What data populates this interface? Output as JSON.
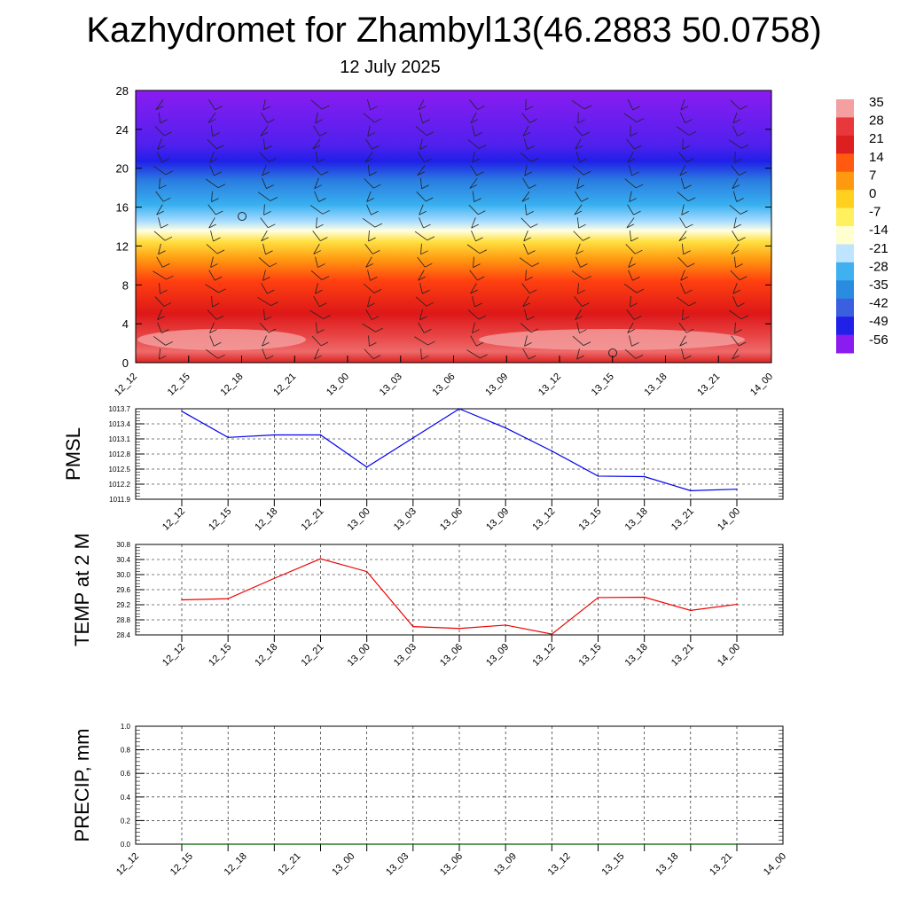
{
  "page": {
    "title": "Kazhydromet for Zhambyl13(46.2883 50.0758)",
    "subtitle": "12 July 2025"
  },
  "chart_data": [
    {
      "type": "heatmap",
      "name": "cross-section",
      "y_ticks": [
        0,
        4,
        8,
        12,
        16,
        20,
        24,
        28
      ],
      "ylim": [
        0,
        28
      ],
      "x_ticks": [
        "12_12",
        "12_15",
        "12_18",
        "12_21",
        "13_00",
        "13_03",
        "13_06",
        "13_09",
        "13_12",
        "13_15",
        "13_18",
        "13_21",
        "14_00"
      ],
      "color_scale": {
        "labels": [
          "35",
          "28",
          "21",
          "14",
          "7",
          "0",
          "-7",
          "-14",
          "-21",
          "-28",
          "-35",
          "-42",
          "-49",
          "-56"
        ],
        "colors": [
          "#f4a0a0",
          "#e8383c",
          "#dd1f1f",
          "#ff5a10",
          "#ff9a10",
          "#ffd020",
          "#fff060",
          "#ffffd0",
          "#bfe4ff",
          "#3fb0f0",
          "#2a8ce0",
          "#3a60e0",
          "#2020e8",
          "#8a1cf0"
        ]
      }
    },
    {
      "type": "line",
      "ylabel": "PMSL",
      "ylim": [
        1011.9,
        1013.7
      ],
      "y_ticks": [
        "1013.7",
        "1013.4",
        "1013.1",
        "1012.8",
        "1012.5",
        "1012.2",
        "1011.9"
      ],
      "x_ticks": [
        "12_12",
        "12_15",
        "12_18",
        "12_21",
        "13_00",
        "13_03",
        "13_06",
        "13_09",
        "13_12",
        "13_15",
        "13_18",
        "13_21",
        "14_00"
      ],
      "values": [
        1013.65,
        1013.13,
        1013.18,
        1013.18,
        1012.54,
        1013.12,
        1013.7,
        1013.32,
        1012.86,
        1012.36,
        1012.35,
        1012.07,
        1012.1
      ],
      "color": "#0000ee"
    },
    {
      "type": "line",
      "ylabel": "TEMP at 2 M",
      "ylim": [
        28.4,
        30.8
      ],
      "y_ticks": [
        "30.8",
        "30.4",
        "30.0",
        "29.6",
        "29.2",
        "28.8",
        "28.4"
      ],
      "x_ticks": [
        "12_12",
        "12_15",
        "12_18",
        "12_21",
        "13_00",
        "13_03",
        "13_06",
        "13_09",
        "13_12",
        "13_15",
        "13_18",
        "13_21",
        "14_00"
      ],
      "values": [
        29.33,
        29.36,
        29.9,
        30.42,
        30.08,
        28.62,
        28.57,
        28.66,
        28.42,
        29.39,
        29.4,
        29.05,
        29.21
      ],
      "color": "#ee0000"
    },
    {
      "type": "line",
      "ylabel": "PRECIP, mm",
      "ylim": [
        0,
        1
      ],
      "y_ticks": [
        "1.0",
        "0.8",
        "0.6",
        "0.4",
        "0.2",
        "0.0"
      ],
      "x_ticks": [
        "12_12",
        "12_15",
        "12_18",
        "12_21",
        "13_00",
        "13_03",
        "13_06",
        "13_09",
        "13_12",
        "13_15",
        "13_18",
        "13_21",
        "14_00"
      ],
      "values": [
        0,
        0,
        0,
        0,
        0,
        0,
        0,
        0,
        0,
        0,
        0,
        0,
        0
      ],
      "color": "#006400"
    }
  ]
}
